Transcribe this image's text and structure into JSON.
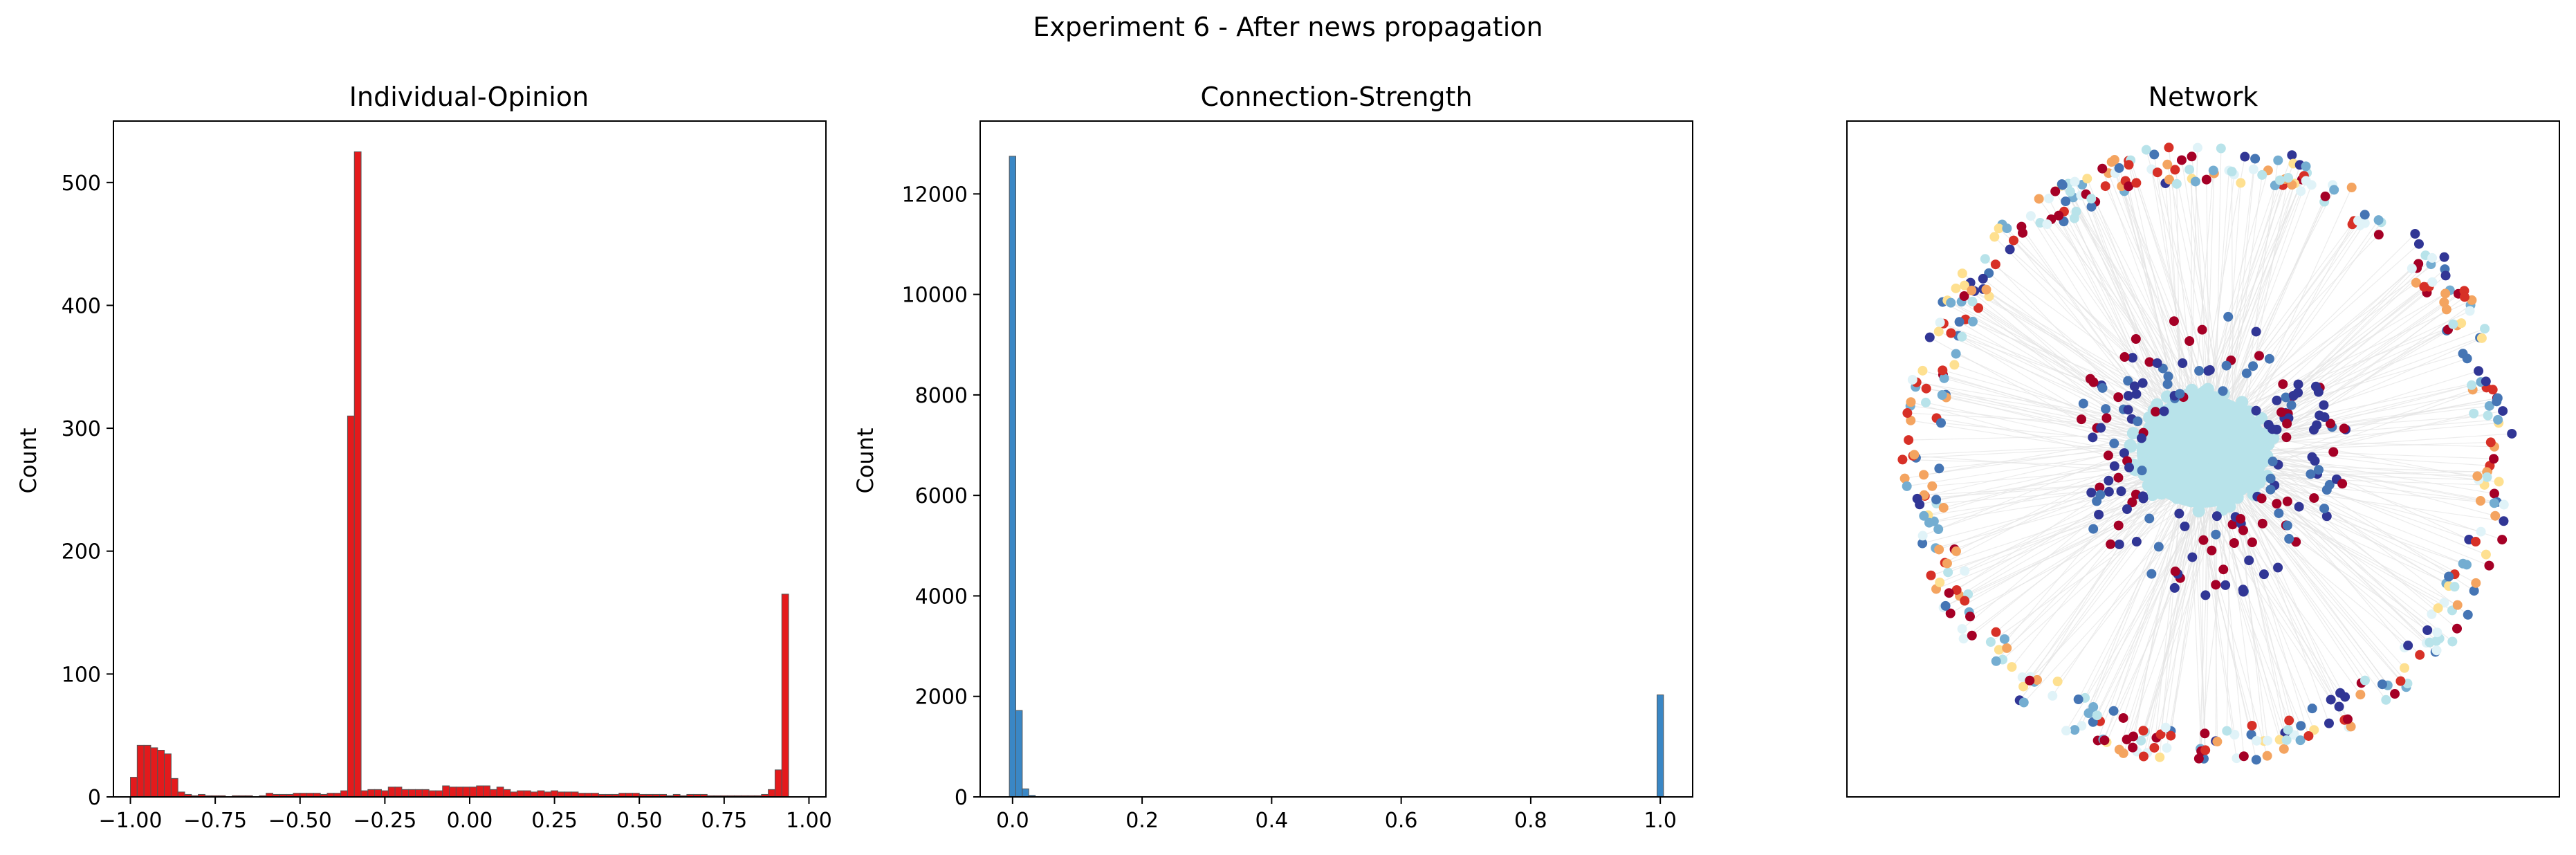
{
  "figure": {
    "suptitle": "Experiment 6 - After news propagation"
  },
  "chart_data": [
    {
      "type": "bar",
      "subtype": "histogram",
      "title": "Individual-Opinion",
      "xlabel": "",
      "ylabel": "Count",
      "xlim": [
        -1.05,
        1.05
      ],
      "ylim": [
        0,
        550
      ],
      "xticks": [
        -1.0,
        -0.75,
        -0.5,
        -0.25,
        0.0,
        0.25,
        0.5,
        0.75,
        1.0
      ],
      "xtick_labels": [
        "−1.00",
        "−0.75",
        "−0.50",
        "−0.25",
        "0.00",
        "0.25",
        "0.50",
        "0.75",
        "1.00"
      ],
      "yticks": [
        0,
        100,
        200,
        300,
        400,
        500
      ],
      "ytick_labels": [
        "0",
        "100",
        "200",
        "300",
        "400",
        "500"
      ],
      "bin_start": -1.0,
      "bin_width": 0.02,
      "bar_color": "#e41a1c",
      "edge_color": "#555555",
      "values": [
        16,
        42,
        42,
        40,
        38,
        35,
        15,
        4,
        2,
        1,
        2,
        1,
        1,
        1,
        0,
        1,
        1,
        1,
        0,
        1,
        3,
        2,
        2,
        2,
        3,
        3,
        3,
        3,
        2,
        3,
        3,
        5,
        310,
        525,
        5,
        6,
        6,
        5,
        8,
        8,
        6,
        6,
        6,
        6,
        5,
        5,
        9,
        8,
        8,
        8,
        8,
        9,
        9,
        6,
        8,
        6,
        4,
        5,
        5,
        4,
        5,
        4,
        5,
        4,
        4,
        4,
        3,
        3,
        3,
        2,
        2,
        2,
        3,
        3,
        3,
        2,
        2,
        2,
        2,
        1,
        2,
        1,
        2,
        2,
        2,
        1,
        1,
        1,
        1,
        1,
        1,
        1,
        1,
        2,
        6,
        22,
        165
      ]
    },
    {
      "type": "bar",
      "subtype": "histogram",
      "title": "Connection-Strength",
      "xlabel": "",
      "ylabel": "Count",
      "xlim": [
        -0.05,
        1.05
      ],
      "ylim": [
        0,
        13450
      ],
      "xticks": [
        0.0,
        0.2,
        0.4,
        0.6,
        0.8,
        1.0
      ],
      "xtick_labels": [
        "0.0",
        "0.2",
        "0.4",
        "0.6",
        "0.8",
        "1.0"
      ],
      "yticks": [
        0,
        2000,
        4000,
        6000,
        8000,
        10000,
        12000
      ],
      "ytick_labels": [
        "0",
        "2000",
        "4000",
        "6000",
        "8000",
        "10000",
        "12000"
      ],
      "bin_start": -0.005,
      "bin_width": 0.01,
      "bar_color": "#3a87c5",
      "edge_color": "#555555",
      "bins": [
        {
          "x": 0.0,
          "value": 12750
        },
        {
          "x": 0.01,
          "value": 1720
        },
        {
          "x": 0.02,
          "value": 160
        },
        {
          "x": 0.03,
          "value": 30
        },
        {
          "x": 1.0,
          "value": 2030
        }
      ]
    },
    {
      "type": "scatter",
      "subtype": "network-graph",
      "title": "Network",
      "center": [
        0,
        0
      ],
      "inner_cluster_color": "#b8e3ea",
      "edge_color": "#e4e4e4",
      "node_palette": [
        "#a50026",
        "#d73027",
        "#f46d43",
        "#fdae61",
        "#fee090",
        "#ffffbf",
        "#e0f3f8",
        "#abd9e9",
        "#74add1",
        "#4575b4",
        "#313695"
      ],
      "inner_ring": {
        "radius": 0.42,
        "count": 170,
        "colors": [
          "#313695",
          "#4575b4",
          "#313695",
          "#a50026"
        ]
      },
      "outer_ring": {
        "radius": 0.9,
        "count": 420,
        "colors": [
          "#a50026",
          "#313695",
          "#fee090",
          "#b8e3ea",
          "#f4a460",
          "#d73027",
          "#4575b4",
          "#74add1",
          "#e0f3f8"
        ]
      }
    }
  ]
}
